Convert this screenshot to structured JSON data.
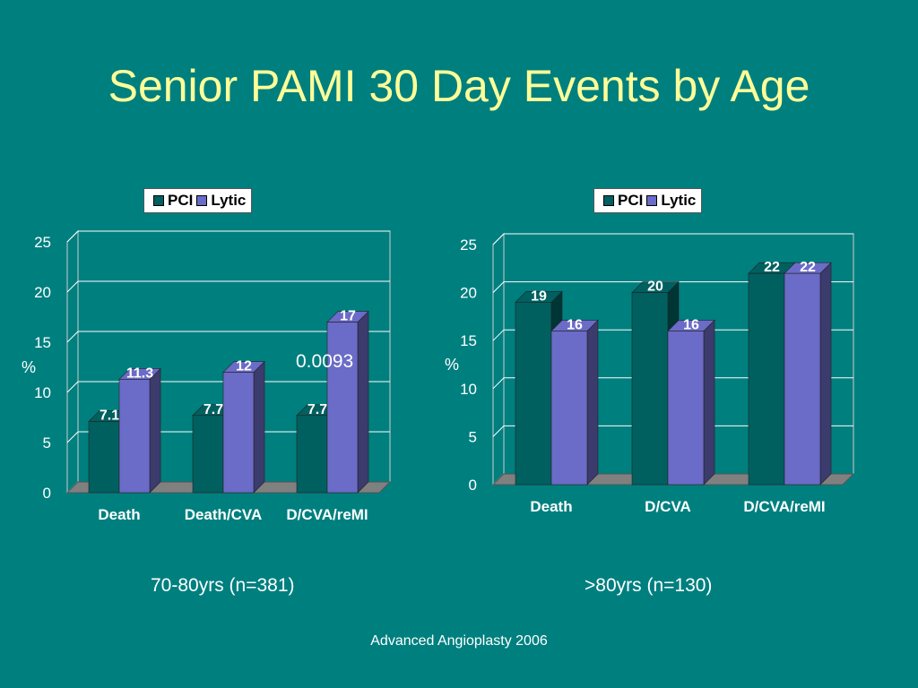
{
  "title": "Senior PAMI 30 Day Events by Age",
  "footer": "Advanced Angioplasty 2006",
  "annotation": "0.0093",
  "colors": {
    "background": "#007f7f",
    "title": "#ffff99",
    "pci": "#006060",
    "lytic": "#6b6bc8"
  },
  "chart_data": [
    {
      "type": "bar",
      "caption": "70-80yrs (n=381)",
      "ylabel": "%",
      "ylim": [
        0,
        25
      ],
      "yticks": [
        0,
        5,
        10,
        15,
        20,
        25
      ],
      "categories": [
        "Death",
        "Death/CVA",
        "D/CVA/reMI"
      ],
      "series": [
        {
          "name": "PCI",
          "values": [
            7.1,
            7.7,
            7.7
          ],
          "labels": [
            "7.1",
            "7.7",
            "7.7"
          ]
        },
        {
          "name": "Lytic",
          "values": [
            11.3,
            12,
            17
          ],
          "labels": [
            "11.3",
            "12",
            "17"
          ]
        }
      ],
      "legend": "top-center",
      "grid": true
    },
    {
      "type": "bar",
      "caption": ">80yrs (n=130)",
      "ylabel": "%",
      "ylim": [
        0,
        25
      ],
      "yticks": [
        0,
        5,
        10,
        15,
        20,
        25
      ],
      "categories": [
        "Death",
        "D/CVA",
        "D/CVA/reMI"
      ],
      "series": [
        {
          "name": "PCI",
          "values": [
            19,
            20,
            22
          ],
          "labels": [
            "19",
            "20",
            "22"
          ]
        },
        {
          "name": "Lytic",
          "values": [
            16,
            16,
            22
          ],
          "labels": [
            "16",
            "16",
            "22"
          ]
        }
      ],
      "legend": "top-center",
      "grid": true
    }
  ]
}
